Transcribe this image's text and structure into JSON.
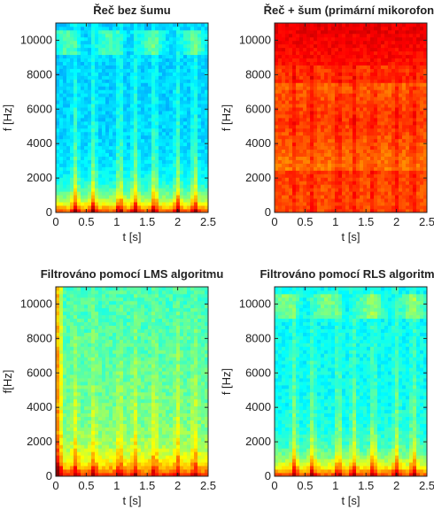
{
  "chart_data": [
    {
      "type": "heatmap",
      "title": "Řeč bez šumu",
      "xlabel": "t [s]",
      "ylabel": "f [Hz]",
      "xlim": [
        0,
        2.5
      ],
      "ylim": [
        0,
        11000
      ],
      "x_ticks": [
        0,
        0.5,
        1,
        1.5,
        2,
        2.5
      ],
      "x_tick_labels": [
        "0",
        "0.5",
        "1",
        "1.5",
        "2",
        "2.5"
      ],
      "y_ticks": [
        0,
        2000,
        4000,
        6000,
        8000,
        10000
      ],
      "y_tick_labels": [
        "0",
        "2000",
        "4000",
        "6000",
        "8000",
        "10000"
      ],
      "colormap": "jet",
      "energy_profile": "speech-clean"
    },
    {
      "type": "heatmap",
      "title": "Řeč + šum (primární mikorofon)",
      "xlabel": "t [s]",
      "ylabel": "f [Hz]",
      "xlim": [
        0,
        2.5
      ],
      "ylim": [
        0,
        11000
      ],
      "x_ticks": [
        0,
        0.5,
        1,
        1.5,
        2,
        2.5
      ],
      "x_tick_labels": [
        "0",
        "0.5",
        "1",
        "1.5",
        "2",
        "2.5"
      ],
      "y_ticks": [
        0,
        2000,
        4000,
        6000,
        8000,
        10000
      ],
      "y_tick_labels": [
        "0",
        "2000",
        "4000",
        "6000",
        "8000",
        "10000"
      ],
      "colormap": "jet",
      "energy_profile": "speech-noisy"
    },
    {
      "type": "heatmap",
      "title": "Filtrováno pomocí LMS algoritmu",
      "xlabel": "t [s]",
      "ylabel": "f[Hz]",
      "xlim": [
        0,
        2.5
      ],
      "ylim": [
        0,
        11000
      ],
      "x_ticks": [
        0,
        0.5,
        1,
        1.5,
        2,
        2.5
      ],
      "x_tick_labels": [
        "0",
        "0.5",
        "1",
        "1.5",
        "2",
        "2.5"
      ],
      "y_ticks": [
        0,
        2000,
        4000,
        6000,
        8000,
        10000
      ],
      "y_tick_labels": [
        "0",
        "2000",
        "4000",
        "6000",
        "8000",
        "10000"
      ],
      "colormap": "jet",
      "energy_profile": "speech-lms"
    },
    {
      "type": "heatmap",
      "title": "Filtrováno pomocí RLS algoritmu",
      "xlabel": "t [s]",
      "ylabel": "f [Hz]",
      "xlim": [
        0,
        2.5
      ],
      "ylim": [
        0,
        11000
      ],
      "x_ticks": [
        0,
        0.5,
        1,
        1.5,
        2,
        2.5
      ],
      "x_tick_labels": [
        "0",
        "0.5",
        "1",
        "1.5",
        "2",
        "2.5"
      ],
      "y_ticks": [
        0,
        2000,
        4000,
        6000,
        8000,
        10000
      ],
      "y_tick_labels": [
        "0",
        "2000",
        "4000",
        "6000",
        "8000",
        "10000"
      ],
      "colormap": "jet",
      "energy_profile": "speech-rls"
    }
  ]
}
